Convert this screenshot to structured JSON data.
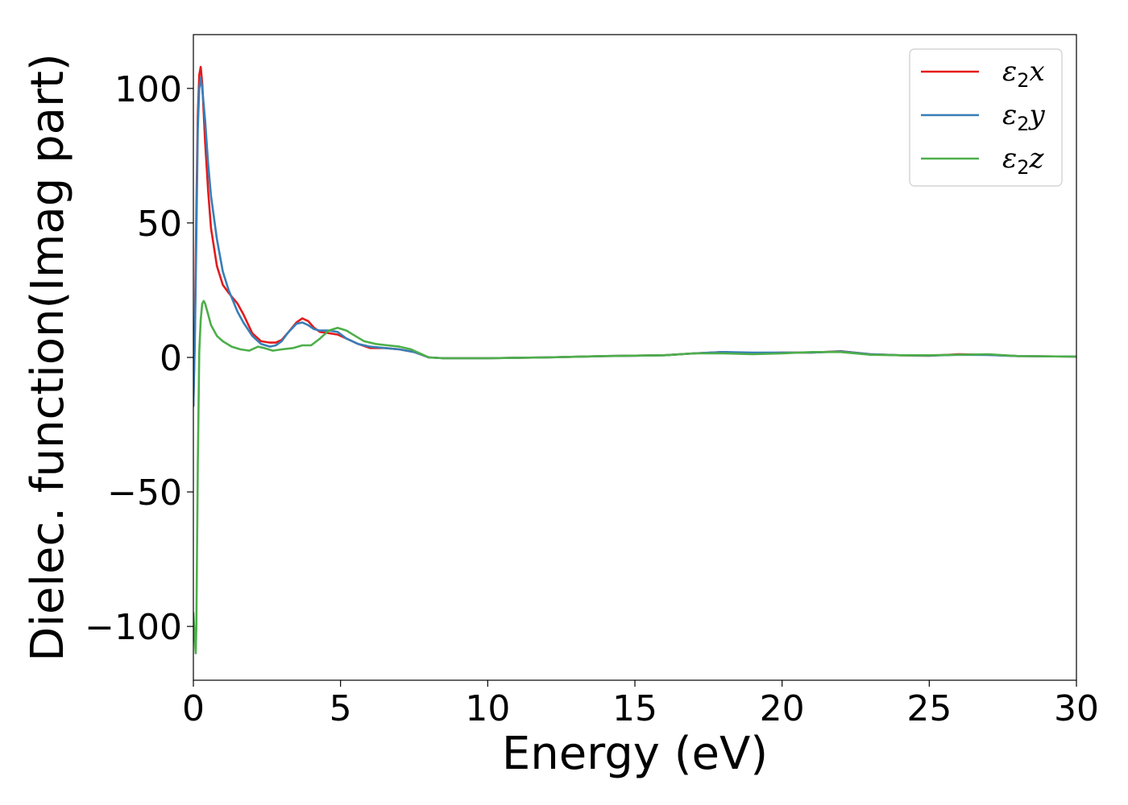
{
  "chart_data": {
    "type": "line",
    "xlabel": "Energy (eV)",
    "ylabel": "Dielec. function(Imag part)",
    "xlim": [
      0,
      30
    ],
    "ylim": [
      -120,
      120
    ],
    "xticks": [
      0,
      5,
      10,
      15,
      20,
      25,
      30
    ],
    "yticks": [
      -100,
      -50,
      0,
      50,
      100
    ],
    "xtick_labels": [
      "0",
      "5",
      "10",
      "15",
      "20",
      "25",
      "30"
    ],
    "ytick_labels": [
      "−100",
      "−50",
      "0",
      "50",
      "100"
    ],
    "grid": false,
    "legend_position": "top-right",
    "series": [
      {
        "name": "ε",
        "subscript": "2",
        "suffix": "x",
        "color": "#e41a1c",
        "x": [
          0.0,
          0.05,
          0.1,
          0.15,
          0.2,
          0.25,
          0.3,
          0.4,
          0.5,
          0.6,
          0.8,
          1.0,
          1.2,
          1.5,
          1.7,
          2.0,
          2.3,
          2.6,
          2.8,
          3.0,
          3.2,
          3.5,
          3.7,
          3.9,
          4.1,
          4.3,
          4.6,
          4.9,
          5.2,
          5.6,
          6.0,
          6.5,
          7.0,
          7.5,
          7.8,
          8.0,
          8.5,
          10,
          12,
          14,
          16,
          17,
          18,
          19,
          20,
          21,
          22,
          23,
          24,
          25,
          26,
          27,
          28,
          30
        ],
        "y": [
          -18,
          10,
          55,
          90,
          105,
          108,
          102,
          80,
          62,
          48,
          34,
          27,
          24,
          20,
          16,
          9,
          6,
          5.5,
          5.5,
          6.5,
          9,
          13,
          14.5,
          13.5,
          11,
          9.5,
          9,
          8.5,
          7,
          5,
          3.5,
          3.5,
          3,
          2,
          0.8,
          0,
          -0.3,
          -0.3,
          0,
          0.5,
          0.8,
          1.5,
          2,
          1.5,
          1.8,
          1.8,
          2.3,
          1.2,
          0.8,
          0.6,
          1.2,
          1,
          0.5,
          0.3
        ]
      },
      {
        "name": "ε",
        "subscript": "2",
        "suffix": "y",
        "color": "#377eb8",
        "x": [
          0.0,
          0.05,
          0.1,
          0.15,
          0.2,
          0.25,
          0.3,
          0.4,
          0.5,
          0.6,
          0.8,
          1.0,
          1.2,
          1.5,
          1.7,
          2.0,
          2.3,
          2.6,
          2.8,
          3.0,
          3.2,
          3.5,
          3.7,
          3.9,
          4.1,
          4.3,
          4.6,
          4.9,
          5.2,
          5.6,
          6.0,
          6.5,
          7.0,
          7.5,
          7.8,
          8.0,
          8.5,
          10,
          12,
          14,
          16,
          17,
          18,
          19,
          20,
          21,
          22,
          23,
          24,
          25,
          26,
          27,
          28,
          30
        ],
        "y": [
          -18,
          5,
          45,
          85,
          100,
          104,
          100,
          88,
          72,
          60,
          44,
          32,
          25,
          17,
          13,
          8,
          5,
          4,
          4.5,
          6,
          9,
          12.5,
          13,
          12,
          10.5,
          10,
          10,
          9.5,
          7,
          5,
          4,
          3.5,
          3,
          2,
          0.8,
          0,
          -0.3,
          -0.3,
          0,
          0.5,
          0.8,
          1.5,
          2,
          1.8,
          1.8,
          1.8,
          2.2,
          1.2,
          0.8,
          0.7,
          1,
          0.9,
          0.5,
          0.3
        ]
      },
      {
        "name": "ε",
        "subscript": "2",
        "suffix": "z",
        "color": "#4daf4a",
        "x": [
          0.0,
          0.05,
          0.08,
          0.1,
          0.15,
          0.2,
          0.25,
          0.3,
          0.35,
          0.4,
          0.5,
          0.6,
          0.8,
          1.0,
          1.3,
          1.6,
          1.9,
          2.2,
          2.4,
          2.7,
          3.0,
          3.4,
          3.7,
          4.0,
          4.3,
          4.6,
          4.9,
          5.2,
          5.5,
          5.8,
          6.2,
          6.6,
          7.0,
          7.4,
          7.8,
          8.0,
          8.5,
          10,
          12,
          14,
          16,
          17,
          18,
          19,
          20,
          21,
          22,
          23,
          24,
          25,
          26,
          27,
          28,
          30
        ],
        "y": [
          -95,
          -105,
          -110,
          -100,
          -40,
          2,
          14,
          20,
          21,
          20,
          16,
          12,
          8,
          6,
          4,
          3,
          2.5,
          4,
          3.5,
          2.5,
          3,
          3.5,
          4.5,
          4.5,
          7,
          10,
          11,
          10,
          8,
          6,
          5,
          4.5,
          4,
          3,
          1,
          0,
          -0.3,
          -0.3,
          0,
          0.5,
          0.8,
          1.5,
          1.5,
          1.2,
          1.5,
          2,
          2,
          1,
          0.8,
          0.8,
          1,
          1.2,
          0.5,
          0.3
        ]
      }
    ]
  }
}
